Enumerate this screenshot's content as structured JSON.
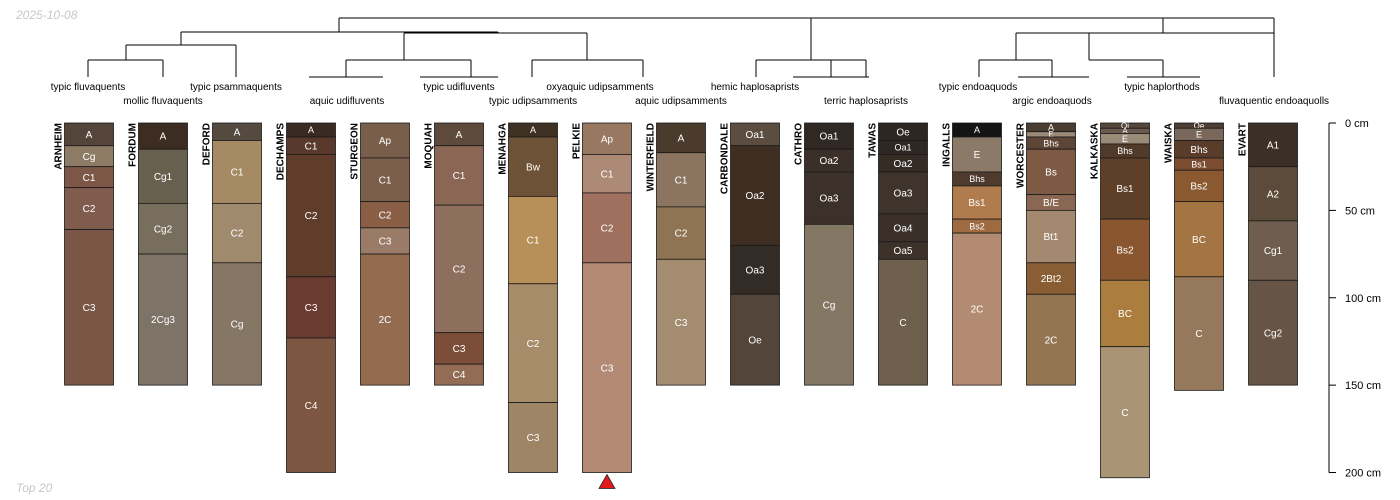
{
  "date_stamp": "2025-10-08",
  "footer_note": "Top 20",
  "depth_axis": {
    "unit": "cm",
    "max": 200,
    "ticks": [
      0,
      50,
      100,
      150,
      200
    ],
    "tick_labels": [
      "0 cm",
      "50 cm",
      "100 cm",
      "150 cm",
      "200 cm"
    ]
  },
  "dendrogram_labels": [
    {
      "name": "label-typic-fluvaquents",
      "text": "typic fluvaquents"
    },
    {
      "name": "label-mollic-fluvaquents",
      "text": "mollic fluvaquents"
    },
    {
      "name": "label-typic-psammaquents",
      "text": "typic psammaquents"
    },
    {
      "name": "label-aquic-udifluvents",
      "text": "aquic udifluvents"
    },
    {
      "name": "label-typic-udifluvents",
      "text": "typic udifluvents"
    },
    {
      "name": "label-typic-udipsamments",
      "text": "typic udipsamments"
    },
    {
      "name": "label-oxyaquic-udipsamments",
      "text": "oxyaquic udipsamments"
    },
    {
      "name": "label-aquic-udipsamments",
      "text": "aquic udipsamments"
    },
    {
      "name": "label-hemic-haplosaprists",
      "text": "hemic haplosaprists"
    },
    {
      "name": "label-terric-haplosaprists",
      "text": "terric haplosaprists"
    },
    {
      "name": "label-typic-endoaquods",
      "text": "typic endoaquods"
    },
    {
      "name": "label-argic-endoaquods",
      "text": "argic endoaquods"
    },
    {
      "name": "label-typic-haplorthods",
      "text": "typic haplorthods"
    },
    {
      "name": "label-fluvaquentic-endoaquolls",
      "text": "fluvaquentic endoaquolls"
    }
  ],
  "profiles": [
    {
      "name": "ARNHEIM",
      "horizons": [
        {
          "label": "A",
          "top": 0,
          "bottom": 13,
          "color": "#54443a"
        },
        {
          "label": "Cg",
          "top": 13,
          "bottom": 25,
          "color": "#8e7b66"
        },
        {
          "label": "C1",
          "top": 25,
          "bottom": 37,
          "color": "#7c5748"
        },
        {
          "label": "C2",
          "top": 37,
          "bottom": 61,
          "color": "#7f5c4d"
        },
        {
          "label": "C3",
          "top": 61,
          "bottom": 150,
          "color": "#7a5646"
        }
      ]
    },
    {
      "name": "FORDUM",
      "horizons": [
        {
          "label": "A",
          "top": 0,
          "bottom": 15,
          "color": "#3c2c22"
        },
        {
          "label": "Cg1",
          "top": 15,
          "bottom": 46,
          "color": "#67604f"
        },
        {
          "label": "Cg2",
          "top": 46,
          "bottom": 75,
          "color": "#776e5e"
        },
        {
          "label": "2Cg3",
          "top": 75,
          "bottom": 150,
          "color": "#7e7367"
        }
      ]
    },
    {
      "name": "DEFORD",
      "horizons": [
        {
          "label": "A",
          "top": 0,
          "bottom": 10,
          "color": "#544a3f"
        },
        {
          "label": "C1",
          "top": 10,
          "bottom": 46,
          "color": "#a68a64"
        },
        {
          "label": "C2",
          "top": 46,
          "bottom": 80,
          "color": "#a08a6e"
        },
        {
          "label": "Cg",
          "top": 80,
          "bottom": 150,
          "color": "#857764"
        }
      ]
    },
    {
      "name": "DECHAMPS",
      "horizons": [
        {
          "label": "A",
          "top": 0,
          "bottom": 8,
          "color": "#3a2b22"
        },
        {
          "label": "C1",
          "top": 8,
          "bottom": 18,
          "color": "#58392b"
        },
        {
          "label": "C2",
          "top": 18,
          "bottom": 88,
          "color": "#5f3d2a"
        },
        {
          "label": "C3",
          "top": 88,
          "bottom": 123,
          "color": "#6a3b31"
        },
        {
          "label": "C4",
          "top": 123,
          "bottom": 200,
          "color": "#7c5640"
        }
      ]
    },
    {
      "name": "STURGEON",
      "horizons": [
        {
          "label": "Ap",
          "top": 0,
          "bottom": 20,
          "color": "#7a5e4c"
        },
        {
          "label": "C1",
          "top": 20,
          "bottom": 45,
          "color": "#7b5e4c"
        },
        {
          "label": "C2",
          "top": 45,
          "bottom": 60,
          "color": "#8a5e45"
        },
        {
          "label": "C3",
          "top": 60,
          "bottom": 75,
          "color": "#9a7b68"
        },
        {
          "label": "2C",
          "top": 75,
          "bottom": 150,
          "color": "#936c50"
        }
      ]
    },
    {
      "name": "MOQUAH",
      "horizons": [
        {
          "label": "A",
          "top": 0,
          "bottom": 13,
          "color": "#5d4a3c"
        },
        {
          "label": "C1",
          "top": 13,
          "bottom": 47,
          "color": "#8c6654"
        },
        {
          "label": "C2",
          "top": 47,
          "bottom": 120,
          "color": "#8e6e5c"
        },
        {
          "label": "C3",
          "top": 120,
          "bottom": 138,
          "color": "#7c4e3a"
        },
        {
          "label": "C4",
          "top": 138,
          "bottom": 150,
          "color": "#936c56"
        }
      ]
    },
    {
      "name": "MENAHGA",
      "horizons": [
        {
          "label": "A",
          "top": 0,
          "bottom": 8,
          "color": "#3e3023"
        },
        {
          "label": "Bw",
          "top": 8,
          "bottom": 42,
          "color": "#6e5237"
        },
        {
          "label": "C1",
          "top": 42,
          "bottom": 92,
          "color": "#b78f58"
        },
        {
          "label": "C2",
          "top": 92,
          "bottom": 160,
          "color": "#a78c6a"
        },
        {
          "label": "C3",
          "top": 160,
          "bottom": 200,
          "color": "#9d8566"
        }
      ]
    },
    {
      "name": "PELKIE",
      "horizons": [
        {
          "label": "Ap",
          "top": 0,
          "bottom": 18,
          "color": "#987860"
        },
        {
          "label": "C1",
          "top": 18,
          "bottom": 40,
          "color": "#ad8a75"
        },
        {
          "label": "C2",
          "top": 40,
          "bottom": 80,
          "color": "#9e705d"
        },
        {
          "label": "C3",
          "top": 80,
          "bottom": 200,
          "color": "#b38a74"
        }
      ]
    },
    {
      "name": "WINTERFIELD",
      "horizons": [
        {
          "label": "A",
          "top": 0,
          "bottom": 17,
          "color": "#4a3b2d"
        },
        {
          "label": "C1",
          "top": 17,
          "bottom": 48,
          "color": "#8c7560"
        },
        {
          "label": "C2",
          "top": 48,
          "bottom": 78,
          "color": "#8f7453"
        },
        {
          "label": "C3",
          "top": 78,
          "bottom": 150,
          "color": "#a48c70"
        }
      ]
    },
    {
      "name": "CARBONDALE",
      "horizons": [
        {
          "label": "Oa1",
          "top": 0,
          "bottom": 13,
          "color": "#5b4d40"
        },
        {
          "label": "Oa2",
          "top": 13,
          "bottom": 70,
          "color": "#3f2f22"
        },
        {
          "label": "Oa3",
          "top": 70,
          "bottom": 98,
          "color": "#332b26"
        },
        {
          "label": "Oe",
          "top": 98,
          "bottom": 150,
          "color": "#54453a"
        }
      ]
    },
    {
      "name": "CATHRO",
      "horizons": [
        {
          "label": "Oa1",
          "top": 0,
          "bottom": 15,
          "color": "#302823"
        },
        {
          "label": "Oa2",
          "top": 15,
          "bottom": 28,
          "color": "#3b2f29"
        },
        {
          "label": "Oa3",
          "top": 28,
          "bottom": 58,
          "color": "#3c302b"
        },
        {
          "label": "Cg",
          "top": 58,
          "bottom": 150,
          "color": "#847764"
        }
      ]
    },
    {
      "name": "TAWAS",
      "horizons": [
        {
          "label": "Oe",
          "top": 0,
          "bottom": 10,
          "color": "#2e2621"
        },
        {
          "label": "Oa1",
          "top": 10,
          "bottom": 18,
          "color": "#2f2722"
        },
        {
          "label": "Oa2",
          "top": 18,
          "bottom": 28,
          "color": "#352c26"
        },
        {
          "label": "Oa3",
          "top": 28,
          "bottom": 52,
          "color": "#3f342c"
        },
        {
          "label": "Oa4",
          "top": 52,
          "bottom": 68,
          "color": "#3a3029"
        },
        {
          "label": "Oa5",
          "top": 68,
          "bottom": 78,
          "color": "#3c322a"
        },
        {
          "label": "C",
          "top": 78,
          "bottom": 150,
          "color": "#6e604d"
        }
      ]
    },
    {
      "name": "INGALLS",
      "horizons": [
        {
          "label": "A",
          "top": 0,
          "bottom": 8,
          "color": "#141414"
        },
        {
          "label": "E",
          "top": 8,
          "bottom": 28,
          "color": "#8c7a68"
        },
        {
          "label": "Bhs",
          "top": 28,
          "bottom": 36,
          "color": "#4f3b2e"
        },
        {
          "label": "Bs1",
          "top": 36,
          "bottom": 55,
          "color": "#b17c4d"
        },
        {
          "label": "Bs2",
          "top": 55,
          "bottom": 63,
          "color": "#9e6a40"
        },
        {
          "label": "2C",
          "top": 63,
          "bottom": 150,
          "color": "#b38a72"
        }
      ]
    },
    {
      "name": "WORCESTER",
      "horizons": [
        {
          "label": "A",
          "top": 0,
          "bottom": 5,
          "color": "#4a3c31"
        },
        {
          "label": "E",
          "top": 5,
          "bottom": 8,
          "color": "#9c8a78"
        },
        {
          "label": "Bhs",
          "top": 8,
          "bottom": 15,
          "color": "#5e4636"
        },
        {
          "label": "Bs",
          "top": 15,
          "bottom": 41,
          "color": "#7c5a44"
        },
        {
          "label": "B/E",
          "top": 41,
          "bottom": 50,
          "color": "#8a6752"
        },
        {
          "label": "Bt1",
          "top": 50,
          "bottom": 80,
          "color": "#a58870"
        },
        {
          "label": "2Bt2",
          "top": 80,
          "bottom": 98,
          "color": "#8a5e34"
        },
        {
          "label": "2C",
          "top": 98,
          "bottom": 150,
          "color": "#947552"
        }
      ]
    },
    {
      "name": "KALKASKA",
      "horizons": [
        {
          "label": "Oi",
          "top": 0,
          "bottom": 3,
          "color": "#56473c"
        },
        {
          "label": "A",
          "top": 3,
          "bottom": 6,
          "color": "#6a5a4f"
        },
        {
          "label": "E",
          "top": 6,
          "bottom": 12,
          "color": "#9a8a78"
        },
        {
          "label": "Bhs",
          "top": 12,
          "bottom": 20,
          "color": "#523a2b"
        },
        {
          "label": "Bs1",
          "top": 20,
          "bottom": 55,
          "color": "#5e3f27"
        },
        {
          "label": "Bs2",
          "top": 55,
          "bottom": 90,
          "color": "#8a5630"
        },
        {
          "label": "BC",
          "top": 90,
          "bottom": 128,
          "color": "#ab7d3e"
        },
        {
          "label": "C",
          "top": 128,
          "bottom": 203,
          "color": "#a99476"
        }
      ]
    },
    {
      "name": "WAISKA",
      "horizons": [
        {
          "label": "Oe",
          "top": 0,
          "bottom": 3,
          "color": "#4e3e33"
        },
        {
          "label": "E",
          "top": 3,
          "bottom": 10,
          "color": "#7a685b"
        },
        {
          "label": "Bhs",
          "top": 10,
          "bottom": 20,
          "color": "#5a3c2a"
        },
        {
          "label": "Bs1",
          "top": 20,
          "bottom": 27,
          "color": "#7a4c30"
        },
        {
          "label": "Bs2",
          "top": 27,
          "bottom": 45,
          "color": "#8a5930"
        },
        {
          "label": "BC",
          "top": 45,
          "bottom": 88,
          "color": "#a47442"
        },
        {
          "label": "C",
          "top": 88,
          "bottom": 153,
          "color": "#96795c"
        }
      ]
    },
    {
      "name": "EVART",
      "horizons": [
        {
          "label": "A1",
          "top": 0,
          "bottom": 25,
          "color": "#3b2f26"
        },
        {
          "label": "A2",
          "top": 25,
          "bottom": 56,
          "color": "#5c4a3b"
        },
        {
          "label": "Cg1",
          "top": 56,
          "bottom": 90,
          "color": "#6f5e4f"
        },
        {
          "label": "Cg2",
          "top": 90,
          "bottom": 150,
          "color": "#665446"
        }
      ]
    }
  ],
  "marker": {
    "profile": "PELKIE",
    "symbol": "triangle",
    "color": "#e31a1c"
  }
}
